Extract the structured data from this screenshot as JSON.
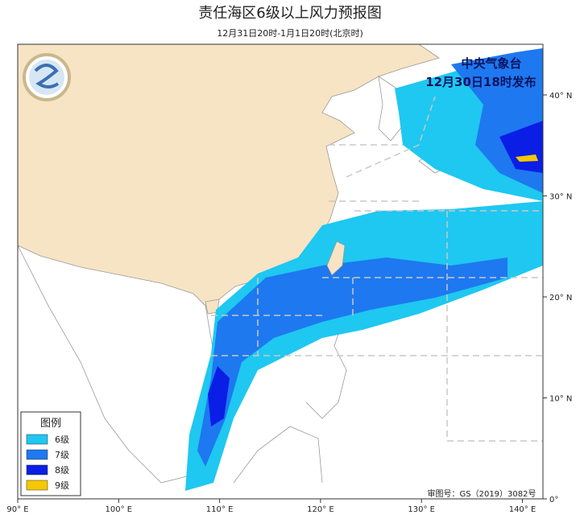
{
  "header": {
    "title": "责任海区6级以上风力预报图",
    "subtitle": "12月31日20时-1月1日20时(北京时)"
  },
  "issuer": {
    "agency": "中央气象台",
    "issue_time": "12月30日18时发布"
  },
  "legend": {
    "title": "图例",
    "items": [
      {
        "label": "6级",
        "color": "#1ec8f0"
      },
      {
        "label": "7级",
        "color": "#1e78f0"
      },
      {
        "label": "8级",
        "color": "#0a1ee6"
      },
      {
        "label": "9级",
        "color": "#f5c800"
      }
    ]
  },
  "axes": {
    "lat_labels": [
      "40° N",
      "30° N",
      "20° N",
      "10° N",
      "0°"
    ],
    "lon_labels": [
      "90° E",
      "100° E",
      "110° E",
      "120° E",
      "130° E",
      "140° E"
    ]
  },
  "approval": "审图号：GS（2019）3082号"
}
